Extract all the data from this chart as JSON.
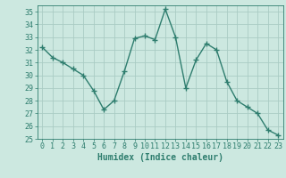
{
  "x": [
    0,
    1,
    2,
    3,
    4,
    5,
    6,
    7,
    8,
    9,
    10,
    11,
    12,
    13,
    14,
    15,
    16,
    17,
    18,
    19,
    20,
    21,
    22,
    23
  ],
  "y": [
    32.2,
    31.4,
    31.0,
    30.5,
    30.0,
    28.8,
    27.3,
    28.0,
    30.3,
    32.9,
    33.1,
    32.8,
    35.2,
    33.0,
    29.0,
    31.2,
    32.5,
    32.0,
    29.5,
    28.0,
    27.5,
    27.0,
    25.7,
    25.3
  ],
  "line_color": "#2e7d6e",
  "marker": "+",
  "markersize": 4,
  "linewidth": 1.0,
  "background_color": "#cce8e0",
  "grid_color": "#aaccC4",
  "xlabel": "Humidex (Indice chaleur)",
  "xlabel_fontsize": 7,
  "tick_fontsize": 6,
  "ylim": [
    25,
    35.5
  ],
  "xlim": [
    -0.5,
    23.5
  ],
  "yticks": [
    25,
    26,
    27,
    28,
    29,
    30,
    31,
    32,
    33,
    34,
    35
  ],
  "xticks": [
    0,
    1,
    2,
    3,
    4,
    5,
    6,
    7,
    8,
    9,
    10,
    11,
    12,
    13,
    14,
    15,
    16,
    17,
    18,
    19,
    20,
    21,
    22,
    23
  ]
}
